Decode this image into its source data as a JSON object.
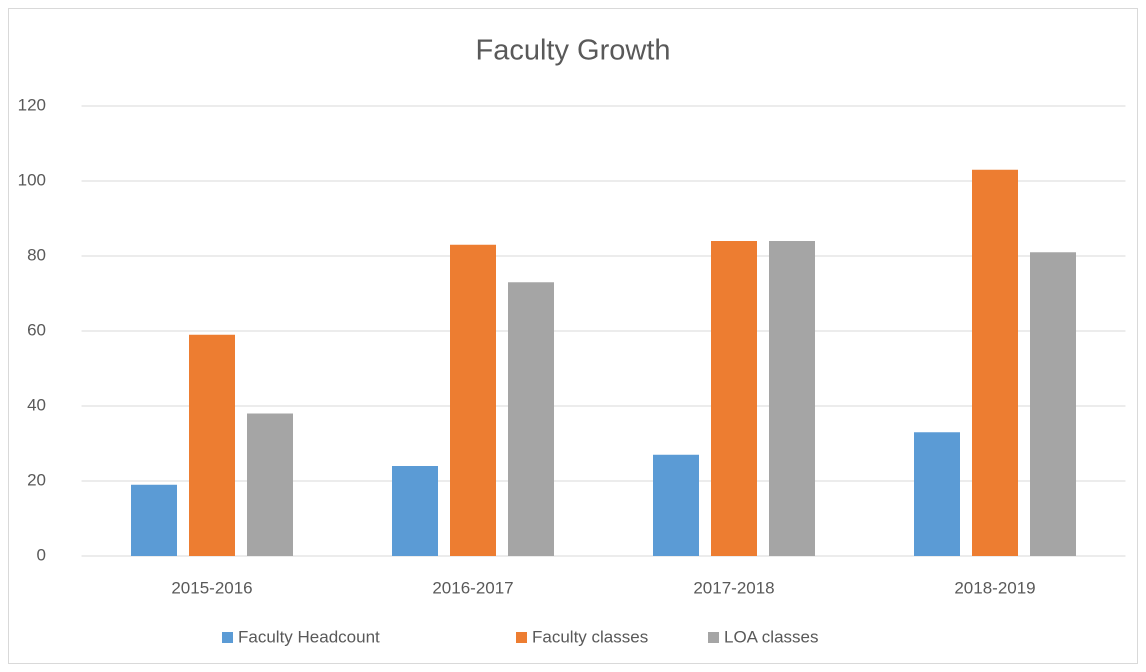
{
  "chart_data": {
    "type": "bar",
    "title": "Faculty Growth",
    "categories": [
      "2015-2016",
      "2016-2017",
      "2017-2018",
      "2018-2019"
    ],
    "series": [
      {
        "name": "Faculty Headcount",
        "color": "#5b9bd5",
        "values": [
          19,
          24,
          27,
          33
        ]
      },
      {
        "name": "Faculty classes",
        "color": "#ed7d31",
        "values": [
          59,
          83,
          84,
          103
        ]
      },
      {
        "name": "LOA classes",
        "color": "#a5a5a5",
        "values": [
          38,
          73,
          84,
          81
        ]
      }
    ],
    "ylim": [
      0,
      120
    ],
    "yticks": [
      0,
      20,
      40,
      60,
      80,
      100,
      120
    ],
    "grid": true,
    "legend": "bottom"
  }
}
